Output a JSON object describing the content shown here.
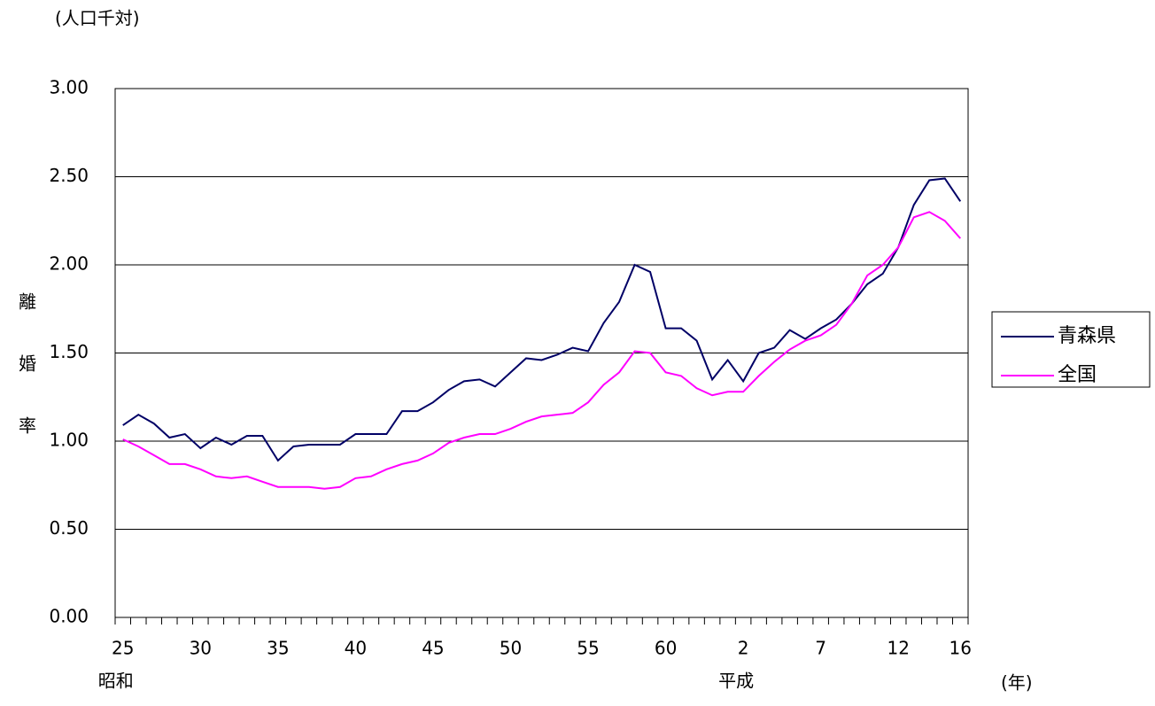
{
  "chart_data": {
    "type": "line",
    "y_unit": "(人口千対)",
    "x_unit": "(年)",
    "y_label": "離婚率",
    "annotations": [
      {
        "text": "昭和",
        "category": 0
      },
      {
        "text": "平成",
        "category": 40
      }
    ],
    "categories": [
      "25",
      null,
      null,
      null,
      null,
      "30",
      null,
      null,
      null,
      null,
      "35",
      null,
      null,
      null,
      null,
      "40",
      null,
      null,
      null,
      null,
      "45",
      null,
      null,
      null,
      null,
      "50",
      null,
      null,
      null,
      null,
      "55",
      null,
      null,
      null,
      null,
      "60",
      null,
      null,
      null,
      null,
      "2",
      null,
      null,
      null,
      null,
      "7",
      null,
      null,
      null,
      null,
      "12",
      null,
      null,
      null,
      "16"
    ],
    "series": [
      {
        "name": "青森県",
        "color": "#000066",
        "values": [
          1.09,
          1.15,
          1.1,
          1.02,
          1.04,
          0.96,
          1.02,
          0.98,
          1.03,
          1.03,
          0.89,
          0.97,
          0.98,
          0.98,
          0.98,
          1.04,
          1.04,
          1.04,
          1.17,
          1.17,
          1.22,
          1.29,
          1.34,
          1.35,
          1.31,
          1.39,
          1.47,
          1.46,
          1.49,
          1.53,
          1.51,
          1.67,
          1.79,
          2.0,
          1.96,
          1.64,
          1.64,
          1.57,
          1.35,
          1.46,
          1.34,
          1.5,
          1.53,
          1.63,
          1.58,
          1.64,
          1.69,
          1.78,
          1.89,
          1.95,
          2.1,
          2.34,
          2.48,
          2.49,
          2.36
        ]
      },
      {
        "name": "全国",
        "color": "#ff00ff",
        "values": [
          1.01,
          0.97,
          0.92,
          0.87,
          0.87,
          0.84,
          0.8,
          0.79,
          0.8,
          0.77,
          0.74,
          0.74,
          0.74,
          0.73,
          0.74,
          0.79,
          0.8,
          0.84,
          0.87,
          0.89,
          0.93,
          0.99,
          1.02,
          1.04,
          1.04,
          1.07,
          1.11,
          1.14,
          1.15,
          1.16,
          1.22,
          1.32,
          1.39,
          1.51,
          1.5,
          1.39,
          1.37,
          1.3,
          1.26,
          1.28,
          1.28,
          1.37,
          1.45,
          1.52,
          1.57,
          1.6,
          1.66,
          1.78,
          1.94,
          2.0,
          2.1,
          2.27,
          2.3,
          2.25,
          2.15
        ]
      }
    ],
    "ylim": [
      0,
      3
    ],
    "yticks": [
      {
        "value": 0,
        "label": "0.00"
      },
      {
        "value": 0.5,
        "label": "0.50"
      },
      {
        "value": 1,
        "label": "1.00"
      },
      {
        "value": 1.5,
        "label": "1.50"
      },
      {
        "value": 2,
        "label": "2.00"
      },
      {
        "value": 2.5,
        "label": "2.50"
      },
      {
        "value": 3,
        "label": "3.00"
      }
    ],
    "grid": true,
    "legend": "right"
  }
}
